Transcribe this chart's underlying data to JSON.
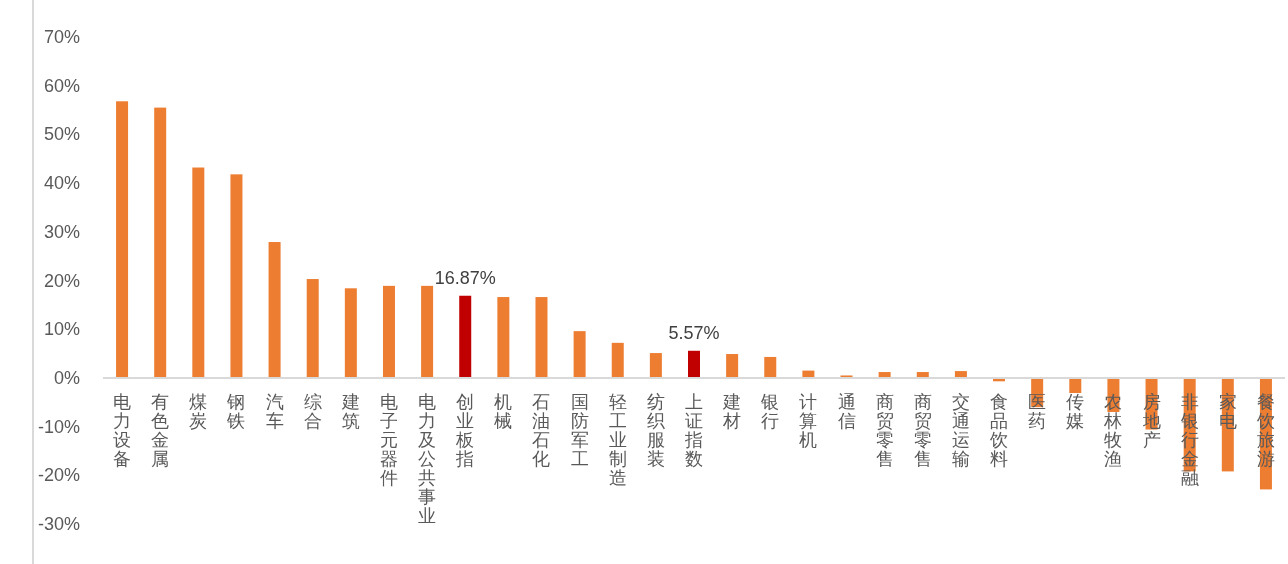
{
  "chart_data": {
    "type": "bar",
    "categories": [
      "电力设备",
      "有色金属",
      "煤炭",
      "钢铁",
      "汽车",
      "综合",
      "建筑",
      "电子元器件",
      "电力及公共事业",
      "创业板指",
      "机械",
      "石油石化",
      "国防军工",
      "轻工业制造",
      "纺织服装",
      "上证指数",
      "建材",
      "银行",
      "计算机",
      "通信",
      "商贸零售",
      "商贸零售",
      "交通运输",
      "食品饮料",
      "医药",
      "传媒",
      "农林牧渔",
      "房地产",
      "非银行金融",
      "家电",
      "餐饮旅游"
    ],
    "values": [
      56.8,
      55.5,
      43.2,
      41.8,
      27.9,
      20.3,
      18.4,
      18.9,
      18.9,
      16.87,
      16.6,
      16.6,
      9.6,
      7.2,
      5.1,
      5.57,
      4.9,
      4.3,
      1.5,
      0.5,
      1.2,
      1.2,
      1.4,
      -0.7,
      -6,
      -3.1,
      -7,
      -10.6,
      -19.2,
      -19.2,
      -22.9
    ],
    "colors": [
      "#ed7d31",
      "#ed7d31",
      "#ed7d31",
      "#ed7d31",
      "#ed7d31",
      "#ed7d31",
      "#ed7d31",
      "#ed7d31",
      "#ed7d31",
      "#c00000",
      "#ed7d31",
      "#ed7d31",
      "#ed7d31",
      "#ed7d31",
      "#ed7d31",
      "#c00000",
      "#ed7d31",
      "#ed7d31",
      "#ed7d31",
      "#ed7d31",
      "#ed7d31",
      "#ed7d31",
      "#ed7d31",
      "#ed7d31",
      "#ed7d31",
      "#ed7d31",
      "#ed7d31",
      "#ed7d31",
      "#ed7d31",
      "#ed7d31",
      "#ed7d31"
    ],
    "value_labels": [
      null,
      null,
      null,
      null,
      null,
      null,
      null,
      null,
      null,
      "16.87%",
      null,
      null,
      null,
      null,
      null,
      "5.57%",
      null,
      null,
      null,
      null,
      null,
      null,
      null,
      null,
      null,
      null,
      null,
      null,
      null,
      null,
      null
    ],
    "ylim": [
      -30,
      70
    ],
    "yticks": [
      {
        "value": -30,
        "label": "-30%"
      },
      {
        "value": -20,
        "label": "-20%"
      },
      {
        "value": -10,
        "label": "-10%"
      },
      {
        "value": 0,
        "label": "0%"
      },
      {
        "value": 10,
        "label": "10%"
      },
      {
        "value": 20,
        "label": "20%"
      },
      {
        "value": 30,
        "label": "30%"
      },
      {
        "value": 40,
        "label": "40%"
      },
      {
        "value": 50,
        "label": "50%"
      },
      {
        "value": 60,
        "label": "60%"
      },
      {
        "value": 70,
        "label": "70%"
      }
    ]
  }
}
